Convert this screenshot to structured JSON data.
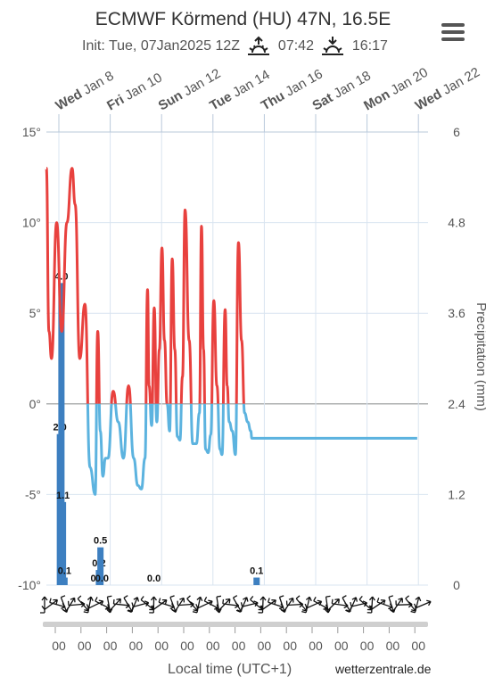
{
  "header": {
    "title": "ECMWF Körmend (HU) 47N, 16.5E",
    "init": "Init: Tue, 07Jan2025 12Z",
    "sunrise": "07:42",
    "sunset": "16:17"
  },
  "footer": {
    "xaxis_title": "Local time (UTC+1)",
    "credit": "wetterzentrale.de",
    "hour_tick_label": "00"
  },
  "colors": {
    "above_zero": "#e8413e",
    "below_zero": "#5cb3df",
    "precip_bars": "#3d7fc0",
    "grid": "#d9e4f0",
    "zero_line": "#9a9a9a"
  },
  "chart_data": {
    "type": "line",
    "title": "ECMWF Körmend (HU) 47N, 16.5E",
    "y_left": {
      "label": "",
      "unit": "°",
      "range": [
        -10,
        15
      ],
      "ticks": [
        "15°",
        "10°",
        "5°",
        "0°",
        "-5°",
        "-10°"
      ]
    },
    "y_right": {
      "label": "Precipitation (mm)",
      "range": [
        0,
        6
      ],
      "ticks": [
        "6",
        "4.8",
        "3.6",
        "2.4",
        "1.2",
        "0"
      ]
    },
    "x_day_labels": [
      {
        "day": "Wed",
        "date": "Jan 8",
        "index": 0
      },
      {
        "day": "Fri",
        "date": "Jan 10",
        "index": 1
      },
      {
        "day": "Sun",
        "date": "Jan 12",
        "index": 2
      },
      {
        "day": "Tue",
        "date": "Jan 14",
        "index": 3
      },
      {
        "day": "Thu",
        "date": "Jan 16",
        "index": 4
      },
      {
        "day": "Sat",
        "date": "Jan 18",
        "index": 5
      },
      {
        "day": "Mon",
        "date": "Jan 20",
        "index": 6
      },
      {
        "day": "Wed",
        "date": "Jan 22",
        "index": 7
      }
    ],
    "hour_ticks_per_period": 2,
    "series": [
      {
        "name": "Temperature",
        "t": [
          0.0,
          0.05,
          0.1,
          0.2,
          0.3,
          0.4,
          0.5,
          0.56,
          0.65,
          0.75,
          0.85,
          0.95,
          1.0,
          1.05,
          1.1,
          1.15,
          1.2,
          1.3,
          1.4,
          1.5,
          1.6,
          1.7,
          1.78,
          1.85,
          1.92,
          1.97,
          2.0,
          2.05,
          2.1,
          2.15,
          2.2,
          2.25,
          2.3,
          2.35,
          2.4,
          2.45,
          2.5,
          2.55,
          2.6,
          2.65,
          2.7,
          2.78,
          2.85,
          2.92,
          2.98,
          3.02,
          3.06,
          3.1,
          3.15,
          3.2,
          3.26,
          3.32,
          3.38,
          3.42,
          3.48,
          3.52,
          3.56,
          3.62,
          3.68,
          3.74,
          3.8,
          3.86,
          3.92,
          3.98,
          4.0,
          4.06,
          4.12,
          4.18,
          4.24,
          4.3,
          4.36,
          4.42,
          4.48,
          4.54,
          4.6,
          4.66,
          4.72,
          4.78,
          4.84,
          4.9,
          4.96,
          5.0,
          5.06,
          5.12,
          5.18,
          5.24,
          5.3,
          5.36,
          5.42,
          5.48,
          5.54,
          5.6,
          5.66,
          5.72,
          5.78,
          5.84,
          5.9,
          5.96,
          6.02,
          6.08,
          6.14,
          6.2,
          6.26,
          6.32,
          6.38,
          6.44,
          6.5,
          6.56,
          6.62,
          6.68,
          6.74,
          6.8,
          6.86,
          6.92,
          6.98,
          7.04,
          7.1,
          7.16,
          7.22
        ],
        "values": [
          13,
          4,
          2.5,
          10,
          4,
          10,
          13,
          11,
          2.5,
          5.5,
          -3.5,
          -5,
          4,
          -1.5,
          -4,
          -3,
          -3,
          0.7,
          -1,
          -3,
          1,
          -3,
          -4.5,
          -4.7,
          -3,
          6.3,
          1,
          -1.2,
          5.3,
          -1,
          3,
          8.6,
          3.5,
          0,
          -1.5,
          8,
          3,
          -1.8,
          -2,
          1.5,
          10.7,
          3.5,
          -2.2,
          -2.2,
          -0.5,
          9.8,
          3,
          -2.5,
          -2.7,
          -1.7,
          5.7,
          1,
          -2.5,
          -2.8,
          5.2,
          1,
          -1,
          -1.5,
          -2.8,
          8.9,
          3.5,
          -0.5,
          -1,
          -1.5,
          -1.9,
          -1.9,
          -1.9,
          -1.9,
          -1.9,
          -1.9,
          -1.9,
          -1.9,
          -1.9,
          -1.9,
          -1.9,
          -1.9,
          -1.9,
          -1.9,
          -1.9,
          -1.9,
          -1.9,
          -1.9,
          -1.9,
          -1.9,
          -1.9,
          -1.9,
          -1.9,
          -1.9,
          -1.9,
          -1.9,
          -1.9,
          -1.9,
          -1.9,
          -1.9,
          -1.9,
          -1.9,
          -1.9,
          -1.9,
          -1.9,
          -1.9,
          -1.9,
          -1.9,
          -1.9,
          -1.9,
          -1.9,
          -1.9,
          -1.9,
          -1.9,
          -1.9,
          -1.9,
          -1.9,
          -1.9,
          -1.9,
          -1.9,
          -1.9,
          -1.9,
          -1.9,
          -1.9,
          -1.9
        ]
      },
      {
        "name": "Precipitation (mm)",
        "bars": [
          {
            "t": 0.02,
            "value": 2.0,
            "label": "2.0"
          },
          {
            "t": 0.05,
            "value": 4.0,
            "label": "4.0"
          },
          {
            "t": 0.08,
            "value": 1.1,
            "label": "1.1"
          },
          {
            "t": 0.11,
            "value": 0.1,
            "label": "0.1"
          },
          {
            "t": 0.75,
            "value": 0.0,
            "label": "0.0"
          },
          {
            "t": 0.78,
            "value": 0.2,
            "label": "0.2"
          },
          {
            "t": 0.81,
            "value": 0.5,
            "label": "0.5"
          },
          {
            "t": 0.84,
            "value": 0.0,
            "label": "0.0"
          },
          {
            "t": 1.85,
            "value": 0.0,
            "label": "0.0"
          },
          {
            "t": 3.85,
            "value": 0.1,
            "label": "0.1"
          }
        ]
      }
    ],
    "grid": true,
    "legend": "none"
  }
}
